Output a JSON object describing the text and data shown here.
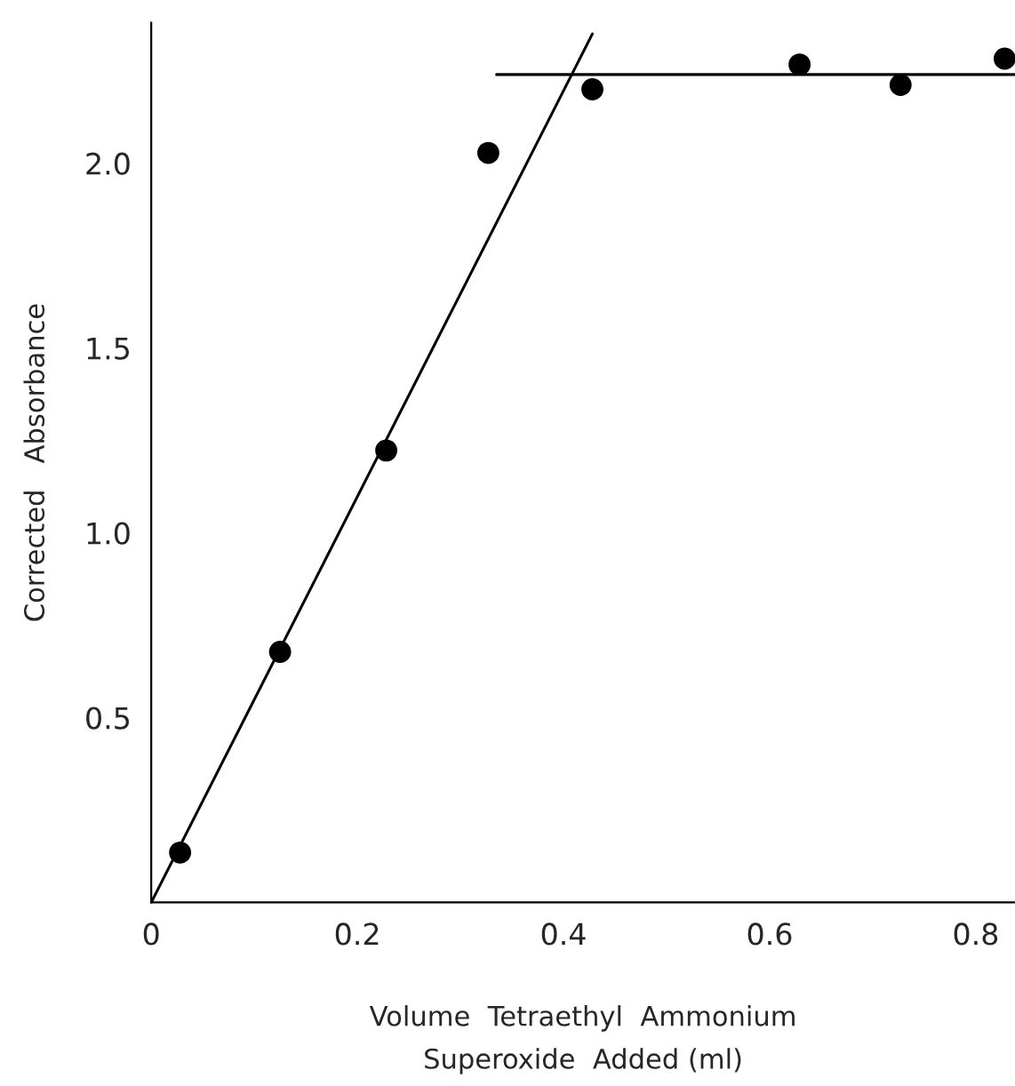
{
  "chart_data": {
    "type": "scatter",
    "xlabel": "Volume  Tetraethyl  Ammonium\nSuperoxide  Added (ml)",
    "ylabel": "Corrected   Absorbance",
    "xlim": [
      0,
      0.838
    ],
    "ylim": [
      0,
      2.38
    ],
    "xticks": [
      0,
      0.2,
      0.4,
      0.6,
      0.8
    ],
    "yticks": [
      0.5,
      {
        "value": 1.0,
        "label": "1.0"
      },
      1.5,
      {
        "value": 2.0,
        "label": "2.0"
      }
    ],
    "grid": false,
    "series": [
      {
        "color": "#000000",
        "marker": "circle",
        "x": [
          0.028,
          0.125,
          0.228,
          0.327,
          0.428,
          0.629,
          0.727,
          0.828
        ],
        "values": [
          0.135,
          0.678,
          1.223,
          2.028,
          2.2,
          2.267,
          2.212,
          2.283
        ]
      },
      {
        "type": "line",
        "color": "#000000",
        "x": [
          0,
          0.428
        ],
        "values": [
          0,
          2.35
        ]
      },
      {
        "type": "line",
        "color": "#000000",
        "x": [
          0.335,
          0.838
        ],
        "values": [
          2.24,
          2.24
        ]
      }
    ]
  }
}
